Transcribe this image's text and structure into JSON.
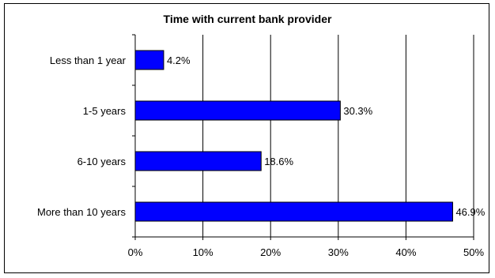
{
  "chart_data": {
    "type": "bar",
    "orientation": "horizontal",
    "title": "Time with current bank provider",
    "categories": [
      "Less than 1 year",
      "1-5 years",
      "6-10 years",
      "More than 10 years"
    ],
    "values": [
      4.2,
      30.3,
      18.6,
      46.9
    ],
    "value_labels": [
      "4.2%",
      "30.3%",
      "18.6%",
      "46.9%"
    ],
    "xlim": [
      0,
      50
    ],
    "xticks": [
      "0%",
      "10%",
      "20%",
      "30%",
      "40%",
      "50%"
    ],
    "grid": "vertical",
    "legend": "none",
    "bar_color": "#0000FF",
    "bar_edge_color": "#000000"
  }
}
